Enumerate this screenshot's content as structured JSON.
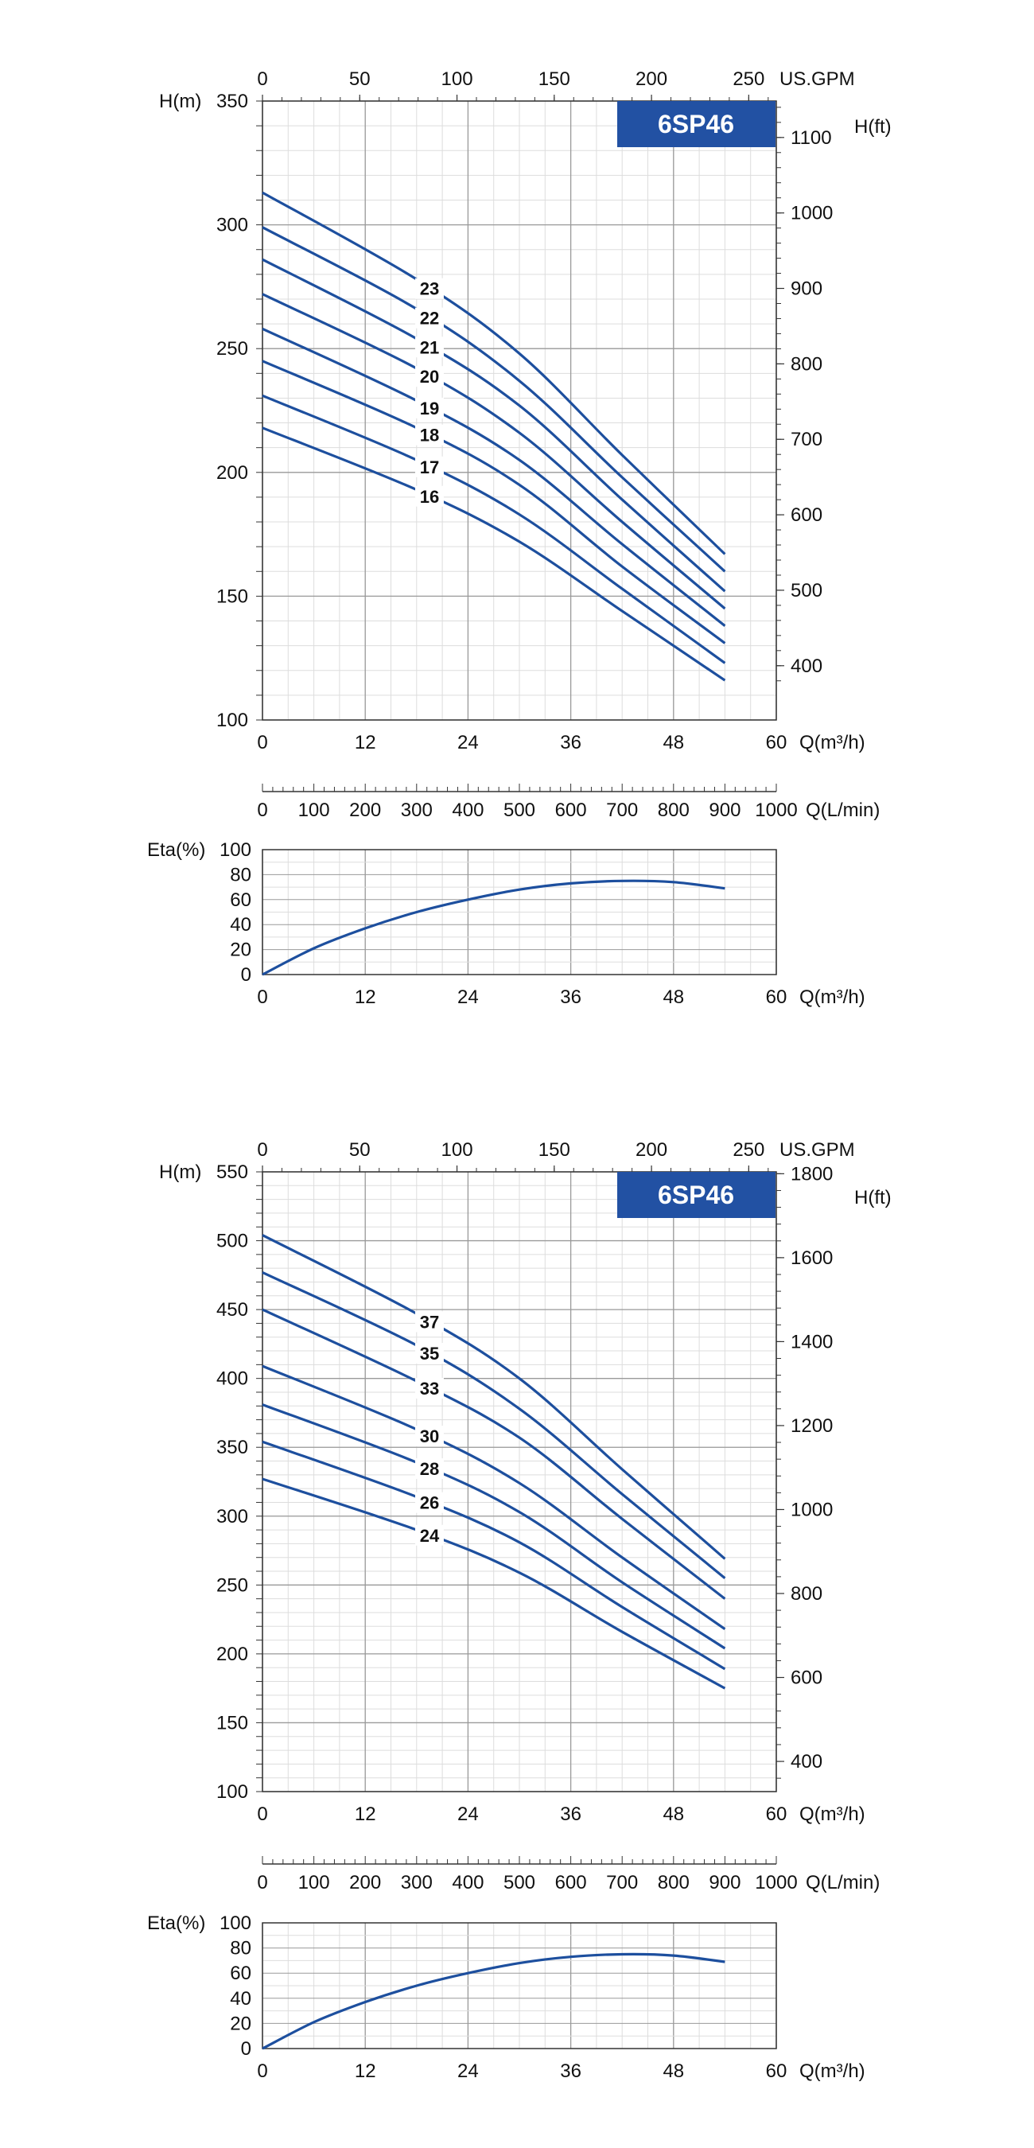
{
  "colors": {
    "curve": "#1d4f9e",
    "badge_bg": "#2251a3",
    "badge_text": "#ffffff",
    "grid_major": "#9a9a9a",
    "grid_minor": "#dddddd",
    "axis": "#333333"
  },
  "chart_data": [
    {
      "type": "line",
      "title": "6SP46",
      "xlabel": "Q(m³/h)",
      "ylabel": "H(m)",
      "xlim": [
        0,
        60
      ],
      "ylim": [
        100,
        350
      ],
      "x_ticks": [
        "0",
        "12",
        "24",
        "36",
        "48",
        "60"
      ],
      "y_ticks": [
        "100",
        "150",
        "200",
        "250",
        "300",
        "350"
      ],
      "gpm_label": "US.GPM",
      "gpm_ticks": [
        "0",
        "50",
        "100",
        "150",
        "200",
        "250"
      ],
      "hft_label": "H(ft)",
      "hft_ticks": [
        "400",
        "500",
        "600",
        "700",
        "800",
        "900",
        "1000",
        "1100"
      ],
      "lmin_label": "Q(L/min)",
      "lmin_ticks": [
        "0",
        "100",
        "200",
        "300",
        "400",
        "500",
        "600",
        "700",
        "800",
        "900",
        "1000"
      ],
      "eta_label": "Eta(%)",
      "eta_ticks": [
        "0",
        "20",
        "40",
        "60",
        "80",
        "100"
      ],
      "eta_xlabel": "Q(m³/h)",
      "series": [
        {
          "name": "23",
          "x": [
            0,
            18,
            30,
            42,
            54
          ],
          "y": [
            313,
            278,
            248,
            207,
            167
          ]
        },
        {
          "name": "22",
          "x": [
            0,
            18,
            30,
            42,
            54
          ],
          "y": [
            299,
            266,
            237,
            198,
            160
          ]
        },
        {
          "name": "21",
          "x": [
            0,
            18,
            30,
            42,
            54
          ],
          "y": [
            286,
            254,
            227,
            189,
            152
          ]
        },
        {
          "name": "20",
          "x": [
            0,
            18,
            30,
            42,
            54
          ],
          "y": [
            272,
            242,
            216,
            180,
            145
          ]
        },
        {
          "name": "19",
          "x": [
            0,
            18,
            30,
            42,
            54
          ],
          "y": [
            258,
            229,
            205,
            171,
            138
          ]
        },
        {
          "name": "18",
          "x": [
            0,
            18,
            30,
            42,
            54
          ],
          "y": [
            245,
            218,
            195,
            162,
            131
          ]
        },
        {
          "name": "17",
          "x": [
            0,
            18,
            30,
            42,
            54
          ],
          "y": [
            231,
            205,
            183,
            153,
            123
          ]
        },
        {
          "name": "16",
          "x": [
            0,
            18,
            30,
            42,
            54
          ],
          "y": [
            218,
            193,
            172,
            144,
            116
          ]
        }
      ],
      "efficiency": {
        "x": [
          0,
          6,
          12,
          18,
          24,
          30,
          36,
          42,
          48,
          54
        ],
        "y": [
          0,
          21,
          37,
          50,
          60,
          68,
          73,
          75,
          74,
          69
        ]
      }
    },
    {
      "type": "line",
      "title": "6SP46",
      "xlabel": "Q(m³/h)",
      "ylabel": "H(m)",
      "xlim": [
        0,
        60
      ],
      "ylim": [
        100,
        550
      ],
      "x_ticks": [
        "0",
        "12",
        "24",
        "36",
        "48",
        "60"
      ],
      "y_ticks": [
        "100",
        "150",
        "200",
        "250",
        "300",
        "350",
        "400",
        "450",
        "500",
        "550"
      ],
      "gpm_label": "US.GPM",
      "gpm_ticks": [
        "0",
        "50",
        "100",
        "150",
        "200",
        "250"
      ],
      "hft_label": "H(ft)",
      "hft_ticks": [
        "400",
        "600",
        "800",
        "1000",
        "1200",
        "1400",
        "1600",
        "1800"
      ],
      "lmin_label": "Q(L/min)",
      "lmin_ticks": [
        "0",
        "100",
        "200",
        "300",
        "400",
        "500",
        "600",
        "700",
        "800",
        "900",
        "1000"
      ],
      "eta_label": "Eta(%)",
      "eta_ticks": [
        "0",
        "20",
        "40",
        "60",
        "80",
        "100"
      ],
      "eta_xlabel": "Q(m³/h)",
      "series": [
        {
          "name": "37",
          "x": [
            0,
            18,
            30,
            42,
            54
          ],
          "y": [
            504,
            447,
            400,
            334,
            269
          ]
        },
        {
          "name": "35",
          "x": [
            0,
            18,
            30,
            42,
            54
          ],
          "y": [
            477,
            424,
            378,
            316,
            255
          ]
        },
        {
          "name": "33",
          "x": [
            0,
            18,
            30,
            42,
            54
          ],
          "y": [
            450,
            398,
            357,
            298,
            240
          ]
        },
        {
          "name": "30",
          "x": [
            0,
            18,
            30,
            42,
            54
          ],
          "y": [
            409,
            363,
            324,
            270,
            218
          ]
        },
        {
          "name": "28",
          "x": [
            0,
            18,
            30,
            42,
            54
          ],
          "y": [
            381,
            339,
            303,
            252,
            204
          ]
        },
        {
          "name": "26",
          "x": [
            0,
            18,
            30,
            42,
            54
          ],
          "y": [
            354,
            314,
            281,
            234,
            189
          ]
        },
        {
          "name": "24",
          "x": [
            0,
            18,
            30,
            42,
            54
          ],
          "y": [
            327,
            290,
            259,
            216,
            175
          ]
        }
      ],
      "efficiency": {
        "x": [
          0,
          6,
          12,
          18,
          24,
          30,
          36,
          42,
          48,
          54
        ],
        "y": [
          0,
          21,
          37,
          50,
          60,
          68,
          73,
          75,
          74,
          69
        ]
      }
    }
  ]
}
